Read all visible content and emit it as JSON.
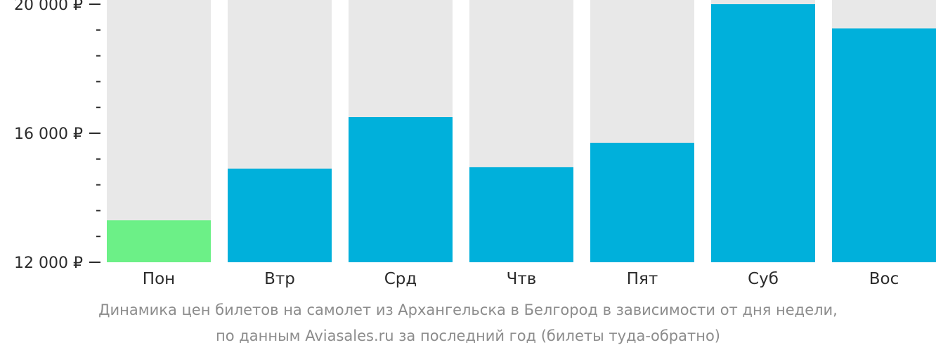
{
  "chart_data": {
    "type": "bar",
    "categories": [
      "Пон",
      "Втр",
      "Срд",
      "Чтв",
      "Пят",
      "Суб",
      "Вос"
    ],
    "values": [
      13300,
      14900,
      16500,
      14950,
      15700,
      20100,
      19250
    ],
    "ylim": [
      12000,
      20000
    ],
    "y_ticks": [
      {
        "value": 12000,
        "label": "12 000 ₽"
      },
      {
        "value": 16000,
        "label": "16 000 ₽"
      },
      {
        "value": 20000,
        "label": "20 000 ₽"
      }
    ],
    "minor_ticks": [
      12800,
      13600,
      14400,
      15200,
      16800,
      17600,
      18400,
      19200
    ],
    "minor_tick_mark": "-",
    "title": "Динамика цен билетов на самолет из Архангельска в Белгород в зависимости от дня недели,",
    "subtitle": "по данным Aviasales.ru за последний год (билеты туда-обратно)",
    "xlabel": "",
    "ylabel": "",
    "colors": {
      "bar": "#00b0db",
      "lowest_bar": "#6cf087",
      "background_bar": "#e8e8e8",
      "axis": "#2b2b2b",
      "caption": "#8c8c8c"
    }
  }
}
